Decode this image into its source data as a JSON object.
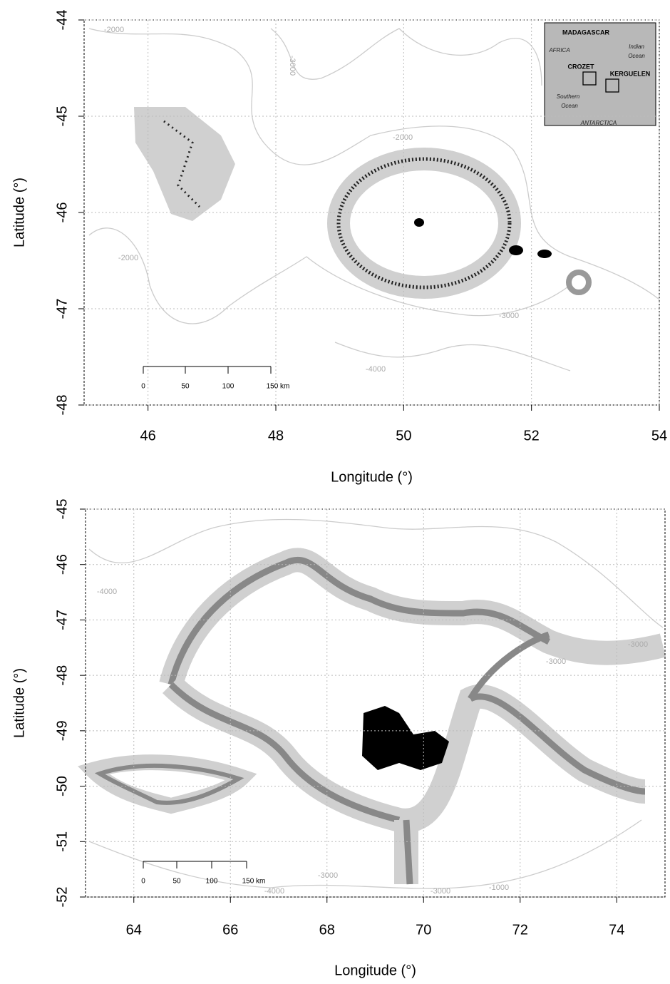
{
  "panels": [
    {
      "xlim": [
        45,
        54
      ],
      "xticks": [
        46,
        48,
        50,
        52,
        54
      ],
      "ylim": [
        -48,
        -44
      ],
      "yticks": [
        -48,
        -47,
        -46,
        -45,
        -44
      ],
      "x_label": "Longitude (°)",
      "y_label": "Latitude (°)",
      "contour_labels": [
        "-2000",
        "-3000",
        "-2000",
        "-2000",
        "-3000",
        "-4000"
      ],
      "scale_bar": [
        "0",
        "50",
        "100",
        "150 km"
      ],
      "inset": {
        "labels": [
          "MADAGASCAR",
          "AFRICA",
          "Indian",
          "Ocean",
          "CROZET",
          "KERGUELEN",
          "Southern",
          "Ocean",
          "ANTARCTICA"
        ]
      }
    },
    {
      "xlim": [
        63,
        75
      ],
      "xticks": [
        64,
        66,
        68,
        70,
        72,
        74
      ],
      "ylim": [
        -52,
        -45
      ],
      "yticks": [
        -52,
        -51,
        -50,
        -49,
        -48,
        -47,
        -46,
        -45
      ],
      "x_label": "Longitude (°)",
      "y_label": "Latitude (°)",
      "contour_labels": [
        "-4000",
        "-3000",
        "-3000",
        "-3000",
        "-4000",
        "-3000",
        "-1000"
      ],
      "scale_bar": [
        "0",
        "50",
        "100",
        "150 km"
      ]
    }
  ]
}
